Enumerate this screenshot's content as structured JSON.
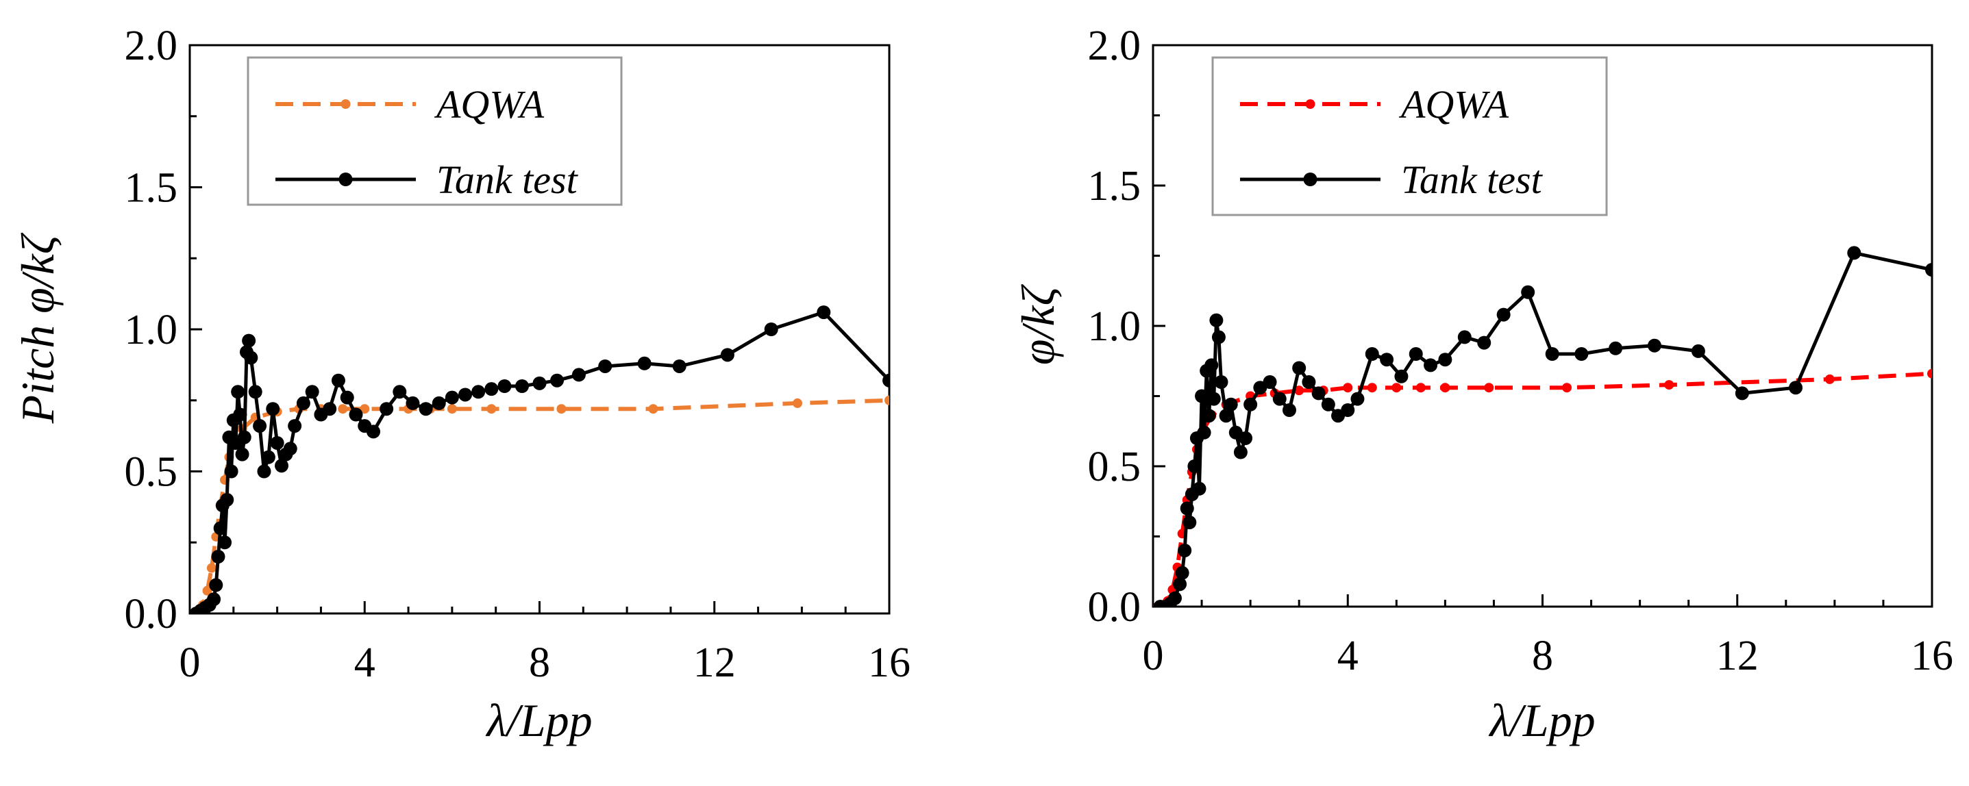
{
  "chart_data": [
    {
      "type": "line",
      "xlabel": "λ/Lpp",
      "ylabel": "Pitch φ/kζ",
      "xlim": [
        0,
        16
      ],
      "ylim": [
        0,
        2.0
      ],
      "xticks": [
        "0",
        "4",
        "8",
        "12",
        "16"
      ],
      "yticks": [
        "0.0",
        "0.5",
        "1.0",
        "1.5",
        "2.0"
      ],
      "grid": false,
      "legend_position": "top-left",
      "series": [
        {
          "name": "AQWA",
          "style": "dashed",
          "color": "#ED7D31",
          "x": [
            0.1,
            0.2,
            0.3,
            0.4,
            0.5,
            0.6,
            0.7,
            0.8,
            0.9,
            1.0,
            1.2,
            1.5,
            2.0,
            2.5,
            3.0,
            3.5,
            4.0,
            4.5,
            5.0,
            5.5,
            6.0,
            6.9,
            8.5,
            10.6,
            13.9,
            16.0
          ],
          "y": [
            0.0,
            0.01,
            0.03,
            0.08,
            0.16,
            0.27,
            0.38,
            0.47,
            0.55,
            0.6,
            0.65,
            0.69,
            0.71,
            0.72,
            0.72,
            0.72,
            0.72,
            0.72,
            0.72,
            0.72,
            0.72,
            0.72,
            0.72,
            0.72,
            0.74,
            0.75
          ]
        },
        {
          "name": "Tank test",
          "style": "solid",
          "color": "#000000",
          "x": [
            0.15,
            0.25,
            0.35,
            0.45,
            0.55,
            0.6,
            0.65,
            0.7,
            0.75,
            0.8,
            0.85,
            0.9,
            0.95,
            1.0,
            1.05,
            1.1,
            1.15,
            1.2,
            1.25,
            1.3,
            1.35,
            1.4,
            1.5,
            1.6,
            1.7,
            1.8,
            1.9,
            2.0,
            2.1,
            2.2,
            2.3,
            2.4,
            2.6,
            2.8,
            3.0,
            3.2,
            3.4,
            3.6,
            3.8,
            4.0,
            4.2,
            4.5,
            4.8,
            5.1,
            5.4,
            5.7,
            6.0,
            6.3,
            6.6,
            6.9,
            7.2,
            7.6,
            8.0,
            8.4,
            8.9,
            9.5,
            10.4,
            11.2,
            12.3,
            13.3,
            14.5,
            16.0
          ],
          "y": [
            0.0,
            0.01,
            0.02,
            0.03,
            0.05,
            0.1,
            0.2,
            0.3,
            0.38,
            0.25,
            0.4,
            0.62,
            0.5,
            0.68,
            0.6,
            0.78,
            0.7,
            0.56,
            0.62,
            0.92,
            0.96,
            0.9,
            0.78,
            0.66,
            0.5,
            0.55,
            0.72,
            0.6,
            0.52,
            0.56,
            0.58,
            0.66,
            0.74,
            0.78,
            0.7,
            0.72,
            0.82,
            0.76,
            0.7,
            0.66,
            0.64,
            0.72,
            0.78,
            0.74,
            0.72,
            0.74,
            0.76,
            0.77,
            0.78,
            0.79,
            0.8,
            0.8,
            0.81,
            0.82,
            0.84,
            0.87,
            0.88,
            0.87,
            0.91,
            1.0,
            1.06,
            0.82
          ]
        }
      ]
    },
    {
      "type": "line",
      "xlabel": "λ/Lpp",
      "ylabel": "φ/kζ",
      "xlim": [
        0,
        16
      ],
      "ylim": [
        0,
        2.0
      ],
      "xticks": [
        "0",
        "4",
        "8",
        "12",
        "16"
      ],
      "yticks": [
        "0.0",
        "0.5",
        "1.0",
        "1.5",
        "2.0"
      ],
      "grid": false,
      "legend_position": "top-left",
      "series": [
        {
          "name": "AQWA",
          "style": "dashed",
          "color": "#FF0000",
          "x": [
            0.1,
            0.2,
            0.3,
            0.4,
            0.5,
            0.6,
            0.7,
            0.8,
            0.9,
            1.0,
            1.2,
            1.5,
            2.0,
            2.5,
            3.0,
            3.5,
            4.0,
            4.5,
            5.0,
            5.5,
            6.0,
            6.9,
            8.5,
            10.6,
            13.9,
            16.0
          ],
          "y": [
            0.0,
            0.0,
            0.02,
            0.06,
            0.14,
            0.26,
            0.38,
            0.48,
            0.56,
            0.62,
            0.68,
            0.72,
            0.75,
            0.76,
            0.77,
            0.77,
            0.78,
            0.78,
            0.78,
            0.78,
            0.78,
            0.78,
            0.78,
            0.79,
            0.81,
            0.83
          ]
        },
        {
          "name": "Tank test",
          "style": "solid",
          "color": "#000000",
          "x": [
            0.15,
            0.25,
            0.35,
            0.45,
            0.55,
            0.6,
            0.65,
            0.7,
            0.75,
            0.8,
            0.85,
            0.9,
            0.95,
            1.0,
            1.05,
            1.1,
            1.15,
            1.2,
            1.25,
            1.3,
            1.35,
            1.4,
            1.5,
            1.6,
            1.7,
            1.8,
            1.9,
            2.0,
            2.2,
            2.4,
            2.6,
            2.8,
            3.0,
            3.2,
            3.4,
            3.6,
            3.8,
            4.0,
            4.2,
            4.5,
            4.8,
            5.1,
            5.4,
            5.7,
            6.0,
            6.4,
            6.8,
            7.2,
            7.7,
            8.2,
            8.8,
            9.5,
            10.3,
            11.2,
            12.1,
            13.2,
            14.4,
            16.0
          ],
          "y": [
            0.0,
            0.0,
            0.01,
            0.03,
            0.08,
            0.12,
            0.2,
            0.35,
            0.3,
            0.4,
            0.5,
            0.6,
            0.42,
            0.75,
            0.62,
            0.84,
            0.68,
            0.86,
            0.74,
            1.02,
            0.96,
            0.8,
            0.68,
            0.72,
            0.62,
            0.55,
            0.6,
            0.72,
            0.78,
            0.8,
            0.74,
            0.7,
            0.85,
            0.8,
            0.76,
            0.72,
            0.68,
            0.7,
            0.74,
            0.9,
            0.88,
            0.82,
            0.9,
            0.86,
            0.88,
            0.96,
            0.94,
            1.04,
            1.12,
            0.9,
            0.9,
            0.92,
            0.93,
            0.91,
            0.76,
            0.78,
            1.26,
            1.2
          ]
        }
      ]
    }
  ]
}
